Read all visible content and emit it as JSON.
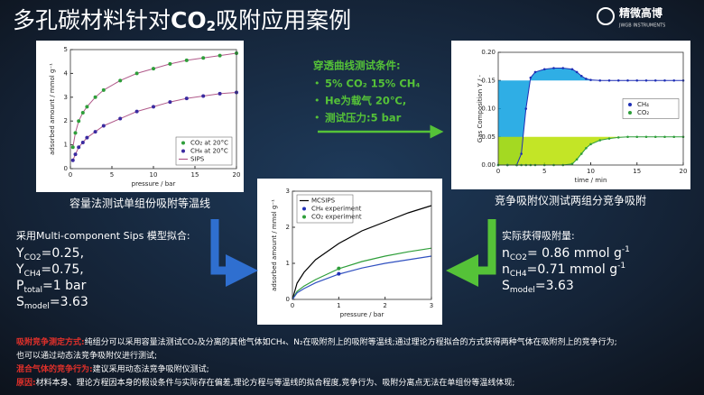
{
  "title": {
    "pre": "多孔碳材料针对",
    "chem": "CO",
    "sub": "2",
    "post": "吸附应用案例"
  },
  "logo": {
    "name": "精微高博",
    "tagline": "JWGB INSTRUMENTS"
  },
  "isotherm": {
    "type": "scatter",
    "caption": "容量法测试单组份吸附等温线",
    "x_label": "pressure / bar",
    "y_label": "adsorbed amount / mmol g⁻¹",
    "xlim": [
      0,
      20
    ],
    "ylim": [
      0,
      5
    ],
    "xticks": [
      0,
      5,
      10,
      15,
      20
    ],
    "yticks": [
      0,
      1,
      2,
      3,
      4,
      5
    ],
    "x": [
      0.3,
      0.6,
      1,
      1.5,
      2,
      3,
      4,
      6,
      8,
      10,
      12,
      14,
      16,
      18,
      20
    ],
    "series": [
      {
        "name": "CO₂ at 20°C",
        "color": "#2e9e3a",
        "values": [
          0.9,
          1.5,
          2.0,
          2.35,
          2.6,
          3.0,
          3.3,
          3.7,
          4.0,
          4.2,
          4.4,
          4.55,
          4.65,
          4.75,
          4.85
        ]
      },
      {
        "name": "CH₄ at 20°C",
        "color": "#3a2aa0",
        "values": [
          0.35,
          0.6,
          0.9,
          1.1,
          1.3,
          1.55,
          1.8,
          2.1,
          2.4,
          2.6,
          2.8,
          2.95,
          3.05,
          3.15,
          3.2
        ]
      }
    ],
    "fit": {
      "name": "SIPS",
      "color": "#b05a8a"
    },
    "legend": "lower right"
  },
  "breakthrough": {
    "type": "line",
    "caption": "竞争吸附仪测试两组分竞争吸附",
    "x_label": "time / min",
    "y_label": "Gas Composition Y / -",
    "xlim": [
      0,
      20
    ],
    "ylim": [
      0,
      0.2
    ],
    "xticks": [
      0,
      5,
      10,
      15,
      20
    ],
    "yticks": [
      {
        "value": 0,
        "label": "0.00"
      },
      {
        "value": 0.05,
        "label": "0.05"
      },
      {
        "value": 0.1,
        "label": "0.10"
      },
      {
        "value": 0.15,
        "label": "0.15"
      },
      {
        "value": 0.2,
        "label": "0.20"
      }
    ],
    "x": [
      0,
      1,
      2,
      2.5,
      3,
      3.5,
      4,
      5,
      6,
      7,
      8,
      8.5,
      9,
      9.5,
      10,
      11,
      12,
      13,
      14,
      15,
      16,
      17,
      18,
      19,
      20
    ],
    "series": [
      {
        "name": "CH₄",
        "color": "#1f2fb5",
        "fill": "#0aa0e0",
        "feed": 0.15,
        "values": [
          0,
          0,
          0,
          0.02,
          0.1,
          0.155,
          0.165,
          0.17,
          0.172,
          0.172,
          0.17,
          0.165,
          0.158,
          0.153,
          0.151,
          0.15,
          0.15,
          0.15,
          0.15,
          0.15,
          0.15,
          0.15,
          0.15,
          0.15,
          0.15
        ]
      },
      {
        "name": "CO₂",
        "color": "#2e9e3a",
        "fill": "#b8e000",
        "feed": 0.05,
        "values": [
          0,
          0,
          0,
          0,
          0,
          0,
          0,
          0,
          0,
          0,
          0.002,
          0.01,
          0.02,
          0.03,
          0.037,
          0.044,
          0.047,
          0.049,
          0.05,
          0.05,
          0.05,
          0.05,
          0.05,
          0.05,
          0.05
        ]
      }
    ],
    "legend": "center right"
  },
  "mixture": {
    "type": "scatter",
    "x_label": "pressure / bar",
    "y_label": "adsorbed amount / mmol g⁻¹",
    "xlim": [
      0,
      3
    ],
    "ylim": [
      0,
      3
    ],
    "xticks": [
      0,
      1,
      2,
      3
    ],
    "yticks": [
      0,
      1,
      2,
      3
    ],
    "fit": {
      "name": "MCSIPS",
      "color": "#000000"
    },
    "curves": [
      {
        "color": "#000000",
        "x": [
          0,
          0.1,
          0.25,
          0.5,
          1,
          1.5,
          2,
          2.5,
          3
        ],
        "values": [
          0,
          0.45,
          0.75,
          1.1,
          1.55,
          1.9,
          2.15,
          2.4,
          2.6
        ]
      },
      {
        "color": "#2e9e3a",
        "x": [
          0,
          0.1,
          0.25,
          0.5,
          1,
          1.5,
          2,
          2.5,
          3
        ],
        "values": [
          0,
          0.22,
          0.37,
          0.55,
          0.85,
          1.05,
          1.2,
          1.32,
          1.42
        ]
      },
      {
        "color": "#3050c0",
        "x": [
          0,
          0.1,
          0.25,
          0.5,
          1,
          1.5,
          2,
          2.5,
          3
        ],
        "values": [
          0,
          0.18,
          0.3,
          0.46,
          0.7,
          0.87,
          1.0,
          1.1,
          1.2
        ]
      }
    ],
    "series": [
      {
        "name": "CH₄ experiment",
        "color": "#1f2fb5",
        "x": [
          1
        ],
        "values": [
          0.71
        ]
      },
      {
        "name": "CO₂ experiment",
        "color": "#2e9e3a",
        "x": [
          1
        ],
        "values": [
          0.86
        ]
      }
    ],
    "legend": "upper left"
  },
  "conditions": {
    "heading": "穿透曲线测试条件:",
    "items": [
      "5% CO₂ 15% CH₄",
      "He为载气 20℃,",
      "测试压力:5 bar"
    ]
  },
  "model": {
    "heading": "采用Multi-component Sips 模型拟合:",
    "lines": [
      {
        "base": "Y",
        "sub": "CO2",
        "rest": "=0.25,"
      },
      {
        "base": "Y",
        "sub": "CH4",
        "rest": "=0.75,"
      },
      {
        "base": " P",
        "sub": "total",
        "rest": "=1 bar"
      },
      {
        "base": "S",
        "sub": "model",
        "rest": "=3.63"
      }
    ]
  },
  "measured": {
    "heading": "实际获得吸附量:",
    "lines": [
      {
        "base": "n",
        "sub": "CO2",
        "rest": "= 0.86 mmol g",
        "sup": "-1"
      },
      {
        "base": "n",
        "sub": "CH4",
        "rest": "=0.71 mmol g",
        "sup": "-1"
      },
      {
        "base": "S",
        "sub": "model",
        "rest": "=3.63"
      }
    ]
  },
  "notes": [
    {
      "label": "吸附竞争测定方式:",
      "text": "纯组分可以采用容量法测试CO₂及分离的其他气体如CH₄、N₂在吸附剂上的吸附等温线;通过理论方程拟合的方式获得两种气体在吸附剂上的竞争行为;"
    },
    {
      "label": "",
      "text": "也可以通过动态法竞争吸附仪进行测试;"
    },
    {
      "label": "混合气体的竞争行为:",
      "text": "建议采用动态法竞争吸附仪测试;"
    },
    {
      "label": "原因:",
      "text": "材料本身、理论方程因本身的假设条件与实际存在偏差,理论方程与等温线的拟合程度,竞争行为、吸附分离点无法在单组份等温线体现;"
    }
  ]
}
